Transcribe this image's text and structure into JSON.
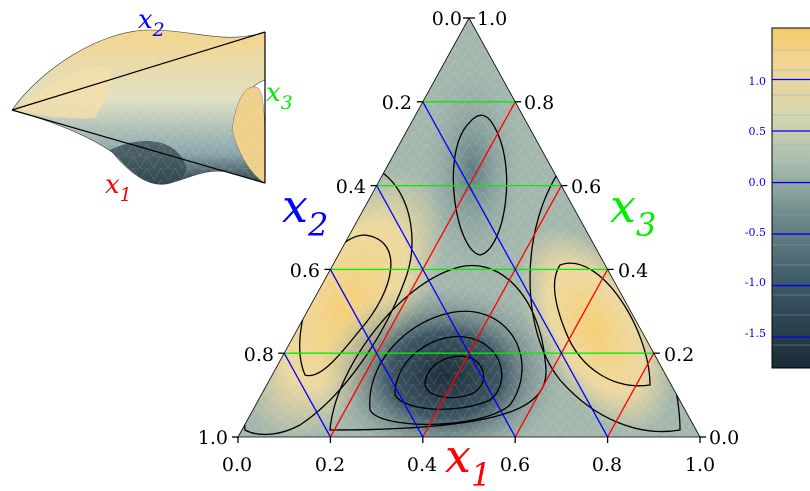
{
  "chart_data": {
    "type": "ternary-contour",
    "axes": {
      "x1": {
        "label_base": "x",
        "label_sub": "1",
        "color": "#ff0000",
        "ticks": [
          "0.0",
          "0.2",
          "0.4",
          "0.6",
          "0.8",
          "1.0"
        ]
      },
      "x2": {
        "label_base": "x",
        "label_sub": "2",
        "color": "#0000ff",
        "ticks": [
          "1.0",
          "0.8",
          "0.6",
          "0.4",
          "0.2",
          "0.0"
        ]
      },
      "x3": {
        "label_base": "x",
        "label_sub": "3",
        "color": "#00ee00",
        "ticks": [
          "0.0",
          "0.2",
          "0.4",
          "0.6",
          "0.8",
          "1.0"
        ]
      }
    },
    "grid_levels": [
      0.2,
      0.4,
      0.6,
      0.8
    ],
    "grid_colors": {
      "x1": "#ff0000",
      "x2": "#0000ff",
      "x3": "#00ee00"
    },
    "colorbar": {
      "ticks": [
        "1.0",
        "0.5",
        "0.0",
        "-0.5",
        "-1.0",
        "-1.5"
      ],
      "tick_values": [
        1.0,
        0.5,
        0.0,
        -0.5,
        -1.0,
        -1.5
      ],
      "range": [
        -1.8,
        1.5
      ],
      "tick_color": "#0000ff",
      "colormap": [
        "#1a2b36",
        "#3d5966",
        "#6f8b8d",
        "#a9bcae",
        "#d8d8b0",
        "#f2d593",
        "#f5c96a"
      ]
    },
    "inset_3d_surface": {
      "axis_labels": [
        {
          "base": "x",
          "sub": "2",
          "color": "#0000ff"
        },
        {
          "base": "x",
          "sub": "3",
          "color": "#00ee00"
        },
        {
          "base": "x",
          "sub": "1",
          "color": "#ff0000"
        }
      ]
    }
  }
}
